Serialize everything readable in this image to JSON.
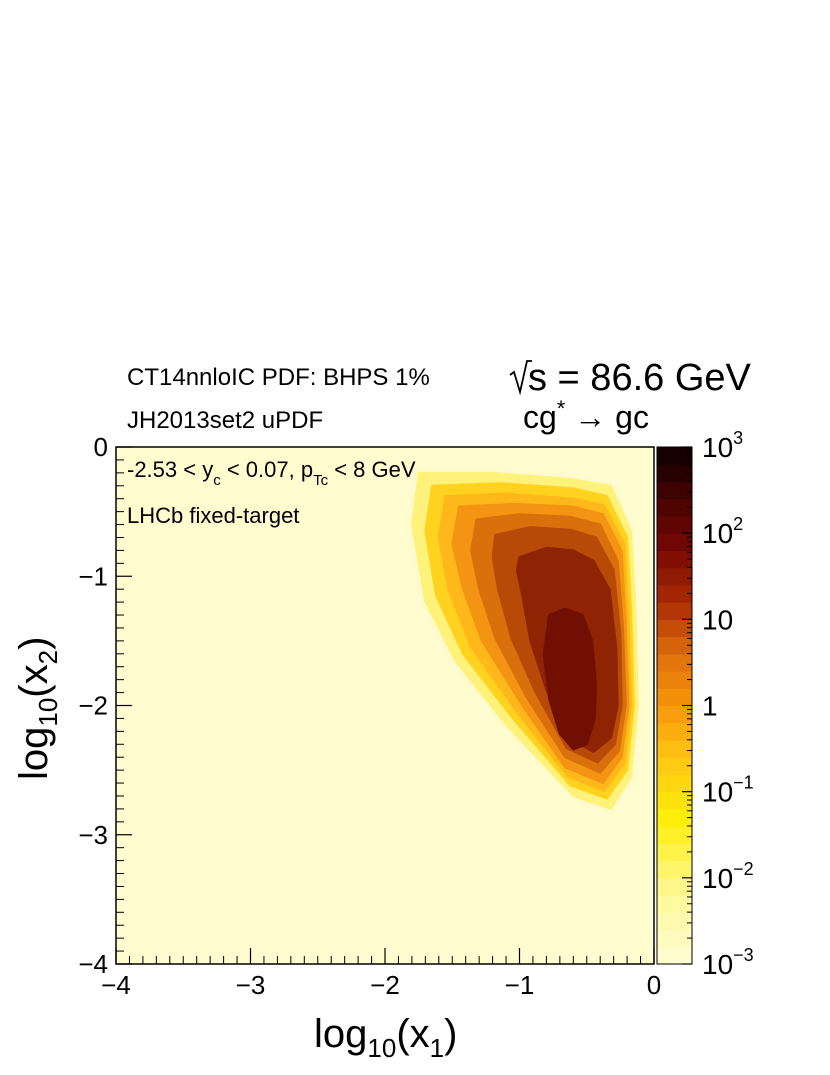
{
  "header": {
    "pdf_label": "CT14nnloIC PDF: BHPS 1%",
    "updf_label": "JH2013set2 uPDF",
    "energy_sqrt": "s",
    "energy_value": " = 86.6 GeV",
    "process_base": "cg",
    "process_star": "*",
    "process_arrow": " → ",
    "process_final": "gc"
  },
  "annotations": {
    "cuts_prefix": "-2.53 < y",
    "cuts_sub_c": "c",
    "cuts_middle": " < 0.07, p",
    "cuts_sub_tc": "Tc",
    "cuts_suffix": " < 8 GeV",
    "experiment": "LHCb fixed-target"
  },
  "chart_data": {
    "type": "heatmap",
    "x_axis": {
      "label_base": "log",
      "label_sub": "10",
      "label_var": "(x",
      "label_var_sub": "1",
      "label_close": ")",
      "range": [
        -4,
        0
      ],
      "ticks": [
        -4,
        -3,
        -2,
        -1,
        0
      ],
      "tick_labels": [
        "−4",
        "−3",
        "−2",
        "−1",
        "0"
      ]
    },
    "y_axis": {
      "label_base": "log",
      "label_sub": "10",
      "label_var": "(x",
      "label_var_sub": "2",
      "label_close": ")",
      "range": [
        -4,
        0
      ],
      "ticks": [
        -4,
        -3,
        -2,
        -1,
        0
      ],
      "tick_labels": [
        "−4",
        "−3",
        "−2",
        "−1",
        "0"
      ]
    },
    "color_scale": {
      "scale": "log",
      "range": [
        0.001,
        1000
      ],
      "tick_labels": [
        {
          "value": 1000,
          "base": "10",
          "exp": "3"
        },
        {
          "value": 100,
          "base": "10",
          "exp": "2"
        },
        {
          "value": 10,
          "base": "10",
          "exp": ""
        },
        {
          "value": 1,
          "base": "1",
          "exp": ""
        },
        {
          "value": 0.1,
          "base": "10",
          "exp": "−1"
        },
        {
          "value": 0.01,
          "base": "10",
          "exp": "−2"
        },
        {
          "value": 0.001,
          "base": "10",
          "exp": "−3"
        }
      ],
      "levels": 30
    },
    "peak": {
      "x": -0.6,
      "y": -1.8,
      "value": 50
    },
    "contour_levels": [
      {
        "value": 0.001,
        "color": "#fffbce",
        "polygon": [
          [
            -1.8,
            -0.15
          ],
          [
            -1.2,
            -0.15
          ],
          [
            -0.6,
            -0.2
          ],
          [
            -0.3,
            -0.25
          ],
          [
            -0.15,
            -0.6
          ],
          [
            -0.12,
            -1.2
          ],
          [
            -0.1,
            -2.0
          ],
          [
            -0.15,
            -2.6
          ],
          [
            -0.3,
            -2.85
          ],
          [
            -0.6,
            -2.75
          ],
          [
            -1.1,
            -2.2
          ],
          [
            -1.5,
            -1.7
          ],
          [
            -1.75,
            -1.2
          ],
          [
            -1.85,
            -0.6
          ]
        ]
      },
      {
        "value": 0.01,
        "color": "#fff27a",
        "polygon": [
          [
            -1.75,
            -0.2
          ],
          [
            -1.2,
            -0.2
          ],
          [
            -0.6,
            -0.25
          ],
          [
            -0.32,
            -0.3
          ],
          [
            -0.17,
            -0.65
          ],
          [
            -0.14,
            -1.2
          ],
          [
            -0.12,
            -2.0
          ],
          [
            -0.17,
            -2.55
          ],
          [
            -0.32,
            -2.8
          ],
          [
            -0.6,
            -2.7
          ],
          [
            -1.1,
            -2.15
          ],
          [
            -1.48,
            -1.65
          ],
          [
            -1.7,
            -1.2
          ],
          [
            -1.8,
            -0.6
          ]
        ]
      },
      {
        "value": 0.1,
        "color": "#ffd21f",
        "polygon": [
          [
            -1.65,
            -0.3
          ],
          [
            -1.15,
            -0.28
          ],
          [
            -0.6,
            -0.32
          ],
          [
            -0.35,
            -0.38
          ],
          [
            -0.2,
            -0.7
          ],
          [
            -0.17,
            -1.25
          ],
          [
            -0.15,
            -2.0
          ],
          [
            -0.2,
            -2.5
          ],
          [
            -0.35,
            -2.72
          ],
          [
            -0.62,
            -2.62
          ],
          [
            -1.05,
            -2.1
          ],
          [
            -1.42,
            -1.6
          ],
          [
            -1.62,
            -1.15
          ],
          [
            -1.7,
            -0.65
          ]
        ]
      },
      {
        "value": 0.3,
        "color": "#ffb81a",
        "polygon": [
          [
            -1.55,
            -0.38
          ],
          [
            -1.1,
            -0.36
          ],
          [
            -0.6,
            -0.4
          ],
          [
            -0.37,
            -0.45
          ],
          [
            -0.22,
            -0.75
          ],
          [
            -0.19,
            -1.3
          ],
          [
            -0.17,
            -2.0
          ],
          [
            -0.22,
            -2.45
          ],
          [
            -0.37,
            -2.66
          ],
          [
            -0.64,
            -2.55
          ],
          [
            -1.02,
            -2.05
          ],
          [
            -1.36,
            -1.55
          ],
          [
            -1.53,
            -1.1
          ],
          [
            -1.6,
            -0.7
          ]
        ]
      },
      {
        "value": 1,
        "color": "#f39412",
        "polygon": [
          [
            -1.45,
            -0.46
          ],
          [
            -1.05,
            -0.44
          ],
          [
            -0.6,
            -0.46
          ],
          [
            -0.38,
            -0.52
          ],
          [
            -0.24,
            -0.8
          ],
          [
            -0.21,
            -1.35
          ],
          [
            -0.19,
            -2.0
          ],
          [
            -0.24,
            -2.4
          ],
          [
            -0.38,
            -2.6
          ],
          [
            -0.66,
            -2.48
          ],
          [
            -0.98,
            -2.0
          ],
          [
            -1.28,
            -1.5
          ],
          [
            -1.42,
            -1.1
          ],
          [
            -1.5,
            -0.75
          ]
        ]
      },
      {
        "value": 3,
        "color": "#d9700c",
        "polygon": [
          [
            -1.32,
            -0.56
          ],
          [
            -1.0,
            -0.52
          ],
          [
            -0.62,
            -0.54
          ],
          [
            -0.4,
            -0.6
          ],
          [
            -0.27,
            -0.88
          ],
          [
            -0.23,
            -1.4
          ],
          [
            -0.21,
            -2.0
          ],
          [
            -0.26,
            -2.35
          ],
          [
            -0.4,
            -2.52
          ],
          [
            -0.66,
            -2.4
          ],
          [
            -0.94,
            -1.95
          ],
          [
            -1.18,
            -1.48
          ],
          [
            -1.3,
            -1.1
          ],
          [
            -1.36,
            -0.8
          ]
        ]
      },
      {
        "value": 10,
        "color": "#b84a08",
        "polygon": [
          [
            -1.18,
            -0.68
          ],
          [
            -0.92,
            -0.62
          ],
          [
            -0.62,
            -0.64
          ],
          [
            -0.43,
            -0.7
          ],
          [
            -0.3,
            -0.95
          ],
          [
            -0.25,
            -1.45
          ],
          [
            -0.24,
            -2.0
          ],
          [
            -0.29,
            -2.3
          ],
          [
            -0.42,
            -2.44
          ],
          [
            -0.65,
            -2.33
          ],
          [
            -0.88,
            -1.9
          ],
          [
            -1.06,
            -1.48
          ],
          [
            -1.16,
            -1.1
          ],
          [
            -1.2,
            -0.85
          ]
        ]
      },
      {
        "value": 30,
        "color": "#8e2404",
        "polygon": [
          [
            -1.0,
            -0.85
          ],
          [
            -0.8,
            -0.78
          ],
          [
            -0.6,
            -0.8
          ],
          [
            -0.45,
            -0.88
          ],
          [
            -0.33,
            -1.1
          ],
          [
            -0.28,
            -1.55
          ],
          [
            -0.27,
            -2.0
          ],
          [
            -0.32,
            -2.25
          ],
          [
            -0.45,
            -2.36
          ],
          [
            -0.64,
            -2.25
          ],
          [
            -0.8,
            -1.88
          ],
          [
            -0.92,
            -1.5
          ],
          [
            -0.98,
            -1.15
          ],
          [
            -1.02,
            -0.95
          ]
        ]
      },
      {
        "value": 50,
        "color": "#700f02",
        "polygon": [
          [
            -0.78,
            -1.3
          ],
          [
            -0.66,
            -1.25
          ],
          [
            -0.53,
            -1.3
          ],
          [
            -0.46,
            -1.5
          ],
          [
            -0.43,
            -1.85
          ],
          [
            -0.44,
            -2.1
          ],
          [
            -0.5,
            -2.3
          ],
          [
            -0.6,
            -2.34
          ],
          [
            -0.7,
            -2.22
          ],
          [
            -0.78,
            -1.95
          ],
          [
            -0.82,
            -1.6
          ]
        ]
      }
    ]
  }
}
